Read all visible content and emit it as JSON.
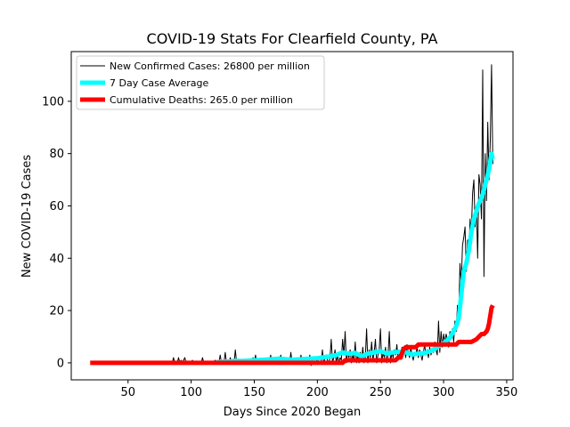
{
  "chart_data": {
    "type": "line",
    "title": "COVID-19 Stats For Clearfield County, PA",
    "xlabel": "Days Since 2020 Began",
    "ylabel": "New COVID-19 Cases",
    "xlim": [
      5,
      355
    ],
    "ylim": [
      -6.5,
      119
    ],
    "xticks": [
      50,
      100,
      150,
      200,
      250,
      300,
      350
    ],
    "yticks": [
      0,
      20,
      40,
      60,
      80,
      100
    ],
    "grid": false,
    "legend": "top-left",
    "series": [
      {
        "name": "New Confirmed Cases: 26800 per million",
        "color": "#000000",
        "linewidth": 1,
        "points": [
          [
            85,
            0
          ],
          [
            86,
            2
          ],
          [
            87,
            0
          ],
          [
            89,
            0
          ],
          [
            90,
            2
          ],
          [
            91,
            0
          ],
          [
            92,
            1
          ],
          [
            93,
            0
          ],
          [
            95,
            2
          ],
          [
            96,
            0
          ],
          [
            100,
            0
          ],
          [
            101,
            1
          ],
          [
            102,
            0
          ],
          [
            108,
            0
          ],
          [
            109,
            2
          ],
          [
            110,
            0
          ],
          [
            118,
            0
          ],
          [
            119,
            1
          ],
          [
            120,
            0
          ],
          [
            122,
            0
          ],
          [
            123,
            3
          ],
          [
            124,
            0
          ],
          [
            126,
            0
          ],
          [
            127,
            4
          ],
          [
            128,
            0
          ],
          [
            130,
            0
          ],
          [
            131,
            2
          ],
          [
            132,
            0
          ],
          [
            134,
            0
          ],
          [
            135,
            5
          ],
          [
            136,
            0
          ],
          [
            138,
            1
          ],
          [
            139,
            0
          ],
          [
            148,
            0
          ],
          [
            149,
            2
          ],
          [
            150,
            0
          ],
          [
            151,
            3
          ],
          [
            152,
            0
          ],
          [
            155,
            0
          ],
          [
            156,
            1
          ],
          [
            157,
            0
          ],
          [
            162,
            0
          ],
          [
            163,
            3
          ],
          [
            164,
            0
          ],
          [
            166,
            2
          ],
          [
            167,
            0
          ],
          [
            170,
            0
          ],
          [
            171,
            3
          ],
          [
            172,
            0
          ],
          [
            174,
            2
          ],
          [
            175,
            0
          ],
          [
            178,
            0
          ],
          [
            179,
            4
          ],
          [
            180,
            0
          ],
          [
            182,
            1
          ],
          [
            183,
            0
          ],
          [
            186,
            0
          ],
          [
            187,
            3
          ],
          [
            188,
            0
          ],
          [
            190,
            2
          ],
          [
            191,
            0
          ],
          [
            193,
            0
          ],
          [
            194,
            3
          ],
          [
            195,
            -1
          ],
          [
            196,
            1
          ],
          [
            197,
            0
          ],
          [
            199,
            0
          ],
          [
            200,
            2
          ],
          [
            201,
            0
          ],
          [
            203,
            0
          ],
          [
            204,
            5
          ],
          [
            205,
            0
          ],
          [
            207,
            3
          ],
          [
            208,
            1
          ],
          [
            209,
            0
          ],
          [
            210,
            2
          ],
          [
            211,
            9
          ],
          [
            212,
            0
          ],
          [
            213,
            2
          ],
          [
            214,
            5
          ],
          [
            215,
            0
          ],
          [
            216,
            3
          ],
          [
            217,
            0
          ],
          [
            218,
            2
          ],
          [
            219,
            1
          ],
          [
            220,
            9
          ],
          [
            221,
            3
          ],
          [
            222,
            12
          ],
          [
            223,
            0
          ],
          [
            224,
            4
          ],
          [
            225,
            2
          ],
          [
            226,
            5
          ],
          [
            227,
            0
          ],
          [
            228,
            3
          ],
          [
            229,
            1
          ],
          [
            230,
            8
          ],
          [
            231,
            0
          ],
          [
            232,
            3
          ],
          [
            233,
            0
          ],
          [
            234,
            4
          ],
          [
            235,
            1
          ],
          [
            236,
            6
          ],
          [
            237,
            0
          ],
          [
            238,
            2
          ],
          [
            239,
            13
          ],
          [
            240,
            0
          ],
          [
            241,
            5
          ],
          [
            242,
            2
          ],
          [
            243,
            8
          ],
          [
            244,
            1
          ],
          [
            245,
            4
          ],
          [
            246,
            9
          ],
          [
            247,
            0
          ],
          [
            248,
            3
          ],
          [
            249,
            5
          ],
          [
            250,
            13
          ],
          [
            251,
            0
          ],
          [
            252,
            4
          ],
          [
            253,
            2
          ],
          [
            254,
            6
          ],
          [
            255,
            0
          ],
          [
            256,
            3
          ],
          [
            257,
            12
          ],
          [
            258,
            0
          ],
          [
            259,
            4
          ],
          [
            260,
            2
          ],
          [
            261,
            5
          ],
          [
            262,
            3
          ],
          [
            263,
            7
          ],
          [
            264,
            1
          ],
          [
            265,
            4
          ],
          [
            266,
            2
          ],
          [
            267,
            6
          ],
          [
            268,
            3
          ],
          [
            269,
            5
          ],
          [
            270,
            2
          ],
          [
            271,
            7
          ],
          [
            272,
            4
          ],
          [
            273,
            2
          ],
          [
            274,
            6
          ],
          [
            275,
            3
          ],
          [
            276,
            1
          ],
          [
            277,
            4
          ],
          [
            278,
            3
          ],
          [
            279,
            6
          ],
          [
            280,
            2
          ],
          [
            281,
            5
          ],
          [
            282,
            3
          ],
          [
            283,
            1
          ],
          [
            284,
            4
          ],
          [
            285,
            7
          ],
          [
            286,
            3
          ],
          [
            287,
            5
          ],
          [
            288,
            2
          ],
          [
            289,
            6
          ],
          [
            290,
            3
          ],
          [
            291,
            5
          ],
          [
            292,
            4
          ],
          [
            293,
            8
          ],
          [
            294,
            5
          ],
          [
            295,
            3
          ],
          [
            296,
            16
          ],
          [
            297,
            4
          ],
          [
            298,
            12
          ],
          [
            299,
            6
          ],
          [
            300,
            11
          ],
          [
            301,
            8
          ],
          [
            302,
            11
          ],
          [
            303,
            9
          ],
          [
            304,
            6
          ],
          [
            305,
            12
          ],
          [
            306,
            10
          ],
          [
            307,
            13
          ],
          [
            308,
            8
          ],
          [
            309,
            16
          ],
          [
            310,
            12
          ],
          [
            311,
            22
          ],
          [
            312,
            18
          ],
          [
            313,
            38
          ],
          [
            314,
            30
          ],
          [
            315,
            45
          ],
          [
            316,
            48
          ],
          [
            317,
            52
          ],
          [
            318,
            35
          ],
          [
            319,
            47
          ],
          [
            320,
            40
          ],
          [
            321,
            55
          ],
          [
            322,
            50
          ],
          [
            323,
            65
          ],
          [
            324,
            70
          ],
          [
            325,
            52
          ],
          [
            326,
            60
          ],
          [
            327,
            40
          ],
          [
            328,
            72
          ],
          [
            329,
            68
          ],
          [
            330,
            55
          ],
          [
            331,
            112
          ],
          [
            332,
            33
          ],
          [
            333,
            80
          ],
          [
            334,
            62
          ],
          [
            335,
            92
          ],
          [
            336,
            70
          ],
          [
            337,
            85
          ],
          [
            338,
            114
          ],
          [
            339,
            76
          ]
        ]
      },
      {
        "name": "7 Day Case Average",
        "color": "#00ffff",
        "linewidth": 5,
        "points": [
          [
            120,
            0.3
          ],
          [
            130,
            0.5
          ],
          [
            135,
            0.8
          ],
          [
            140,
            0.7
          ],
          [
            150,
            1.0
          ],
          [
            160,
            1.3
          ],
          [
            170,
            1.6
          ],
          [
            180,
            1.2
          ],
          [
            190,
            1.5
          ],
          [
            200,
            1.8
          ],
          [
            210,
            2.5
          ],
          [
            215,
            3.0
          ],
          [
            220,
            4.0
          ],
          [
            225,
            3.5
          ],
          [
            230,
            3.8
          ],
          [
            235,
            2.5
          ],
          [
            240,
            3.5
          ],
          [
            245,
            4.0
          ],
          [
            250,
            4.5
          ],
          [
            255,
            3.6
          ],
          [
            260,
            4.0
          ],
          [
            265,
            4.2
          ],
          [
            270,
            4.0
          ],
          [
            275,
            3.2
          ],
          [
            280,
            3.5
          ],
          [
            285,
            3.8
          ],
          [
            290,
            4.5
          ],
          [
            295,
            6.0
          ],
          [
            300,
            7.5
          ],
          [
            305,
            9.5
          ],
          [
            310,
            14
          ],
          [
            312,
            17
          ],
          [
            314,
            26
          ],
          [
            316,
            35
          ],
          [
            318,
            38
          ],
          [
            320,
            43
          ],
          [
            322,
            50
          ],
          [
            324,
            55
          ],
          [
            326,
            58
          ],
          [
            328,
            61
          ],
          [
            330,
            63
          ],
          [
            332,
            66
          ],
          [
            334,
            70
          ],
          [
            336,
            74
          ],
          [
            338,
            80
          ],
          [
            339,
            78
          ]
        ]
      },
      {
        "name": "Cumulative Deaths: 265.0 per million",
        "color": "#ff0000",
        "linewidth": 5,
        "points": [
          [
            20,
            0
          ],
          [
            220,
            0
          ],
          [
            222,
            1
          ],
          [
            262,
            1
          ],
          [
            264,
            2
          ],
          [
            266,
            2
          ],
          [
            268,
            5
          ],
          [
            270,
            6
          ],
          [
            278,
            6
          ],
          [
            280,
            7
          ],
          [
            310,
            7
          ],
          [
            312,
            8
          ],
          [
            320,
            8
          ],
          [
            322,
            8
          ],
          [
            326,
            9
          ],
          [
            328,
            10
          ],
          [
            330,
            11
          ],
          [
            332,
            11
          ],
          [
            334,
            12
          ],
          [
            335,
            13
          ],
          [
            336,
            15
          ],
          [
            337,
            18
          ],
          [
            338,
            21
          ],
          [
            339,
            22
          ]
        ]
      }
    ]
  }
}
